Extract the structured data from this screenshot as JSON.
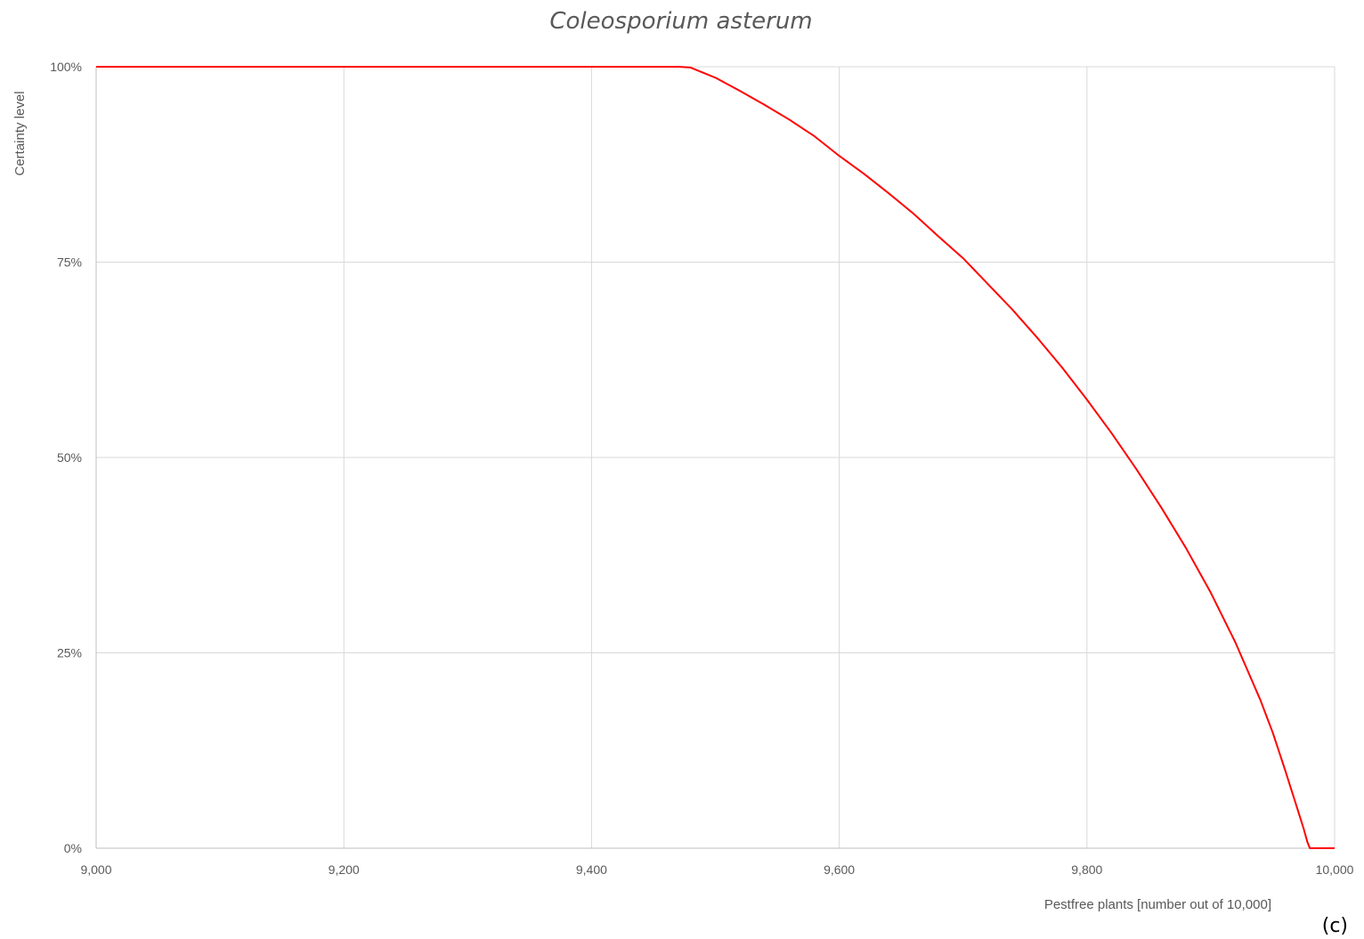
{
  "chart_data": {
    "type": "line",
    "title": "Coleosporium asterum",
    "xlabel": "Pestfree plants [number out of 10,000]",
    "ylabel": "Certainty level",
    "panel_label": "(c)",
    "xlim": [
      9000,
      10000
    ],
    "ylim": [
      0,
      100
    ],
    "x_ticks": [
      9000,
      9200,
      9400,
      9600,
      9800,
      10000
    ],
    "x_tick_labels": [
      "9,000",
      "9,200",
      "9,400",
      "9,600",
      "9,800",
      "10,000"
    ],
    "y_ticks": [
      0,
      25,
      50,
      75,
      100
    ],
    "y_tick_labels": [
      "0%",
      "25%",
      "50%",
      "75%",
      "100%"
    ],
    "grid": true,
    "colors": {
      "series": "#ff0000",
      "grid": "#d9d9d9",
      "text": "#595959"
    },
    "series": [
      {
        "x": [
          9000,
          9100,
          9200,
          9300,
          9400,
          9470,
          9480,
          9500,
          9520,
          9540,
          9560,
          9580,
          9600,
          9620,
          9640,
          9660,
          9680,
          9700,
          9720,
          9740,
          9760,
          9780,
          9800,
          9820,
          9840,
          9860,
          9880,
          9900,
          9920,
          9940,
          9950,
          9960,
          9970,
          9975,
          9978,
          9980,
          9990,
          10000
        ],
        "y": [
          100,
          100,
          100,
          100,
          100,
          100,
          99.9,
          98.6,
          96.9,
          95.1,
          93.2,
          91.1,
          88.6,
          86.3,
          83.8,
          81.2,
          78.3,
          75.5,
          72.2,
          68.9,
          65.3,
          61.5,
          57.4,
          53.1,
          48.5,
          43.6,
          38.4,
          32.7,
          26.3,
          19.0,
          14.8,
          10.0,
          5.0,
          2.5,
          0.8,
          0,
          0,
          0
        ]
      }
    ]
  }
}
